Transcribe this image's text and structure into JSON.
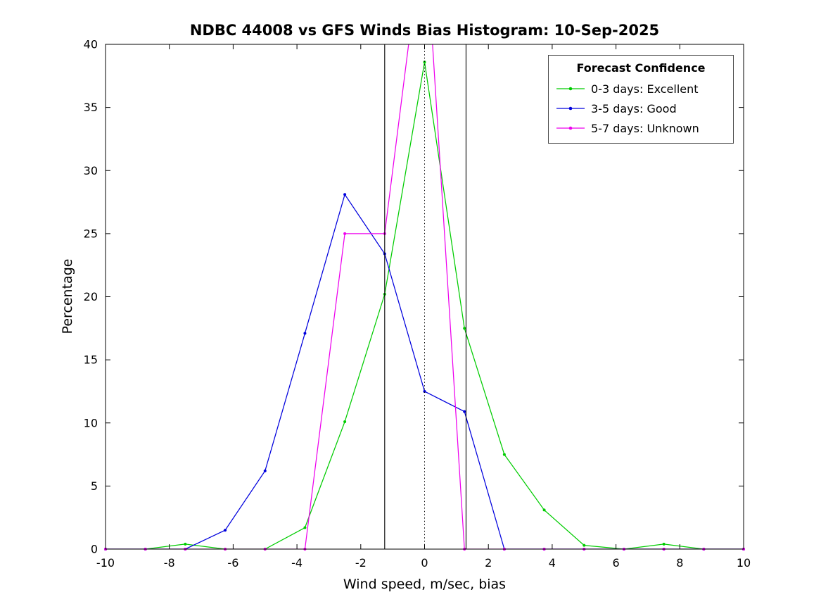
{
  "chart_data": {
    "type": "line",
    "title": "NDBC 44008 vs GFS Winds Bias Histogram: 10-Sep-2025",
    "xlabel": "Wind speed, m/sec, bias",
    "ylabel": "Percentage",
    "xlim": [
      -10,
      10
    ],
    "ylim": [
      0,
      40
    ],
    "xticks": [
      -10,
      -8,
      -6,
      -4,
      -2,
      0,
      2,
      4,
      6,
      8,
      10
    ],
    "yticks": [
      0,
      5,
      10,
      15,
      20,
      25,
      30,
      35,
      40
    ],
    "grid": false,
    "marker": "dot",
    "x": [
      -10,
      -8.75,
      -7.5,
      -6.25,
      -5,
      -3.75,
      -2.5,
      -1.25,
      0,
      1.25,
      2.5,
      3.75,
      5,
      6.25,
      7.5,
      8.75,
      10
    ],
    "series": [
      {
        "name": "0-3 days: Excellent",
        "color": "#00cc00",
        "values": [
          0,
          0,
          0.4,
          0,
          0,
          1.7,
          10.1,
          20.2,
          38.6,
          17.5,
          7.5,
          3.1,
          0.3,
          0,
          0.4,
          0,
          0
        ]
      },
      {
        "name": "3-5 days: Good",
        "color": "#0000dd",
        "values": [
          0,
          0,
          0,
          1.5,
          6.2,
          17.1,
          28.1,
          23.4,
          12.5,
          10.9,
          0,
          0,
          0,
          0,
          0,
          0,
          0
        ]
      },
      {
        "name": "5-7 days: Unknown",
        "color": "#ee00ee",
        "values": [
          0,
          0,
          0,
          0,
          0,
          0,
          25,
          25,
          50,
          0,
          0,
          0,
          0,
          0,
          0,
          0,
          0
        ]
      }
    ],
    "reference_lines": {
      "solid_vlines": [
        -1.25,
        1.3
      ],
      "dotted_vline": 0
    },
    "legend": {
      "title": "Forecast Confidence",
      "position": "top-right"
    }
  }
}
